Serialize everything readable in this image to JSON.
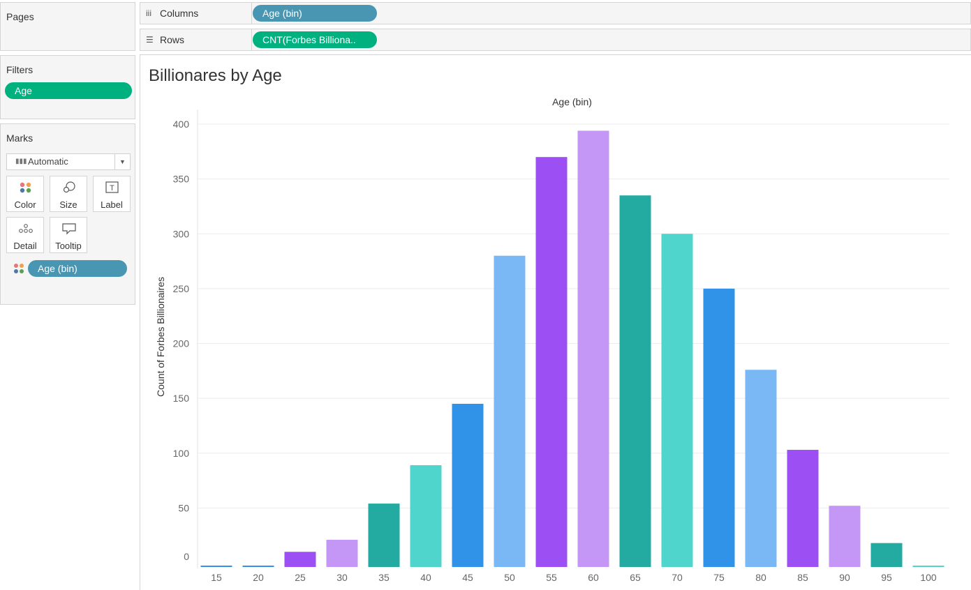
{
  "panels": {
    "pages_title": "Pages",
    "filters_title": "Filters",
    "filters_pill": "Age",
    "marks_title": "Marks",
    "mark_type": "Automatic",
    "buttons": [
      {
        "label": "Color",
        "icon": "color-icon"
      },
      {
        "label": "Size",
        "icon": "size-icon"
      },
      {
        "label": "Label",
        "icon": "label-icon"
      },
      {
        "label": "Detail",
        "icon": "detail-icon"
      },
      {
        "label": "Tooltip",
        "icon": "tooltip-icon"
      }
    ],
    "color_pill": "Age (bin)"
  },
  "shelves": {
    "columns_label": "Columns",
    "columns_pill": "Age (bin)",
    "rows_label": "Rows",
    "rows_pill": "CNT(Forbes Billiona.."
  },
  "chart_data": {
    "type": "bar",
    "title": "Billionares by Age",
    "xlabel": "Age (bin)",
    "ylabel": "Count of Forbes Billionaires",
    "categories": [
      "15",
      "20",
      "25",
      "30",
      "35",
      "40",
      "45",
      "50",
      "55",
      "60",
      "65",
      "70",
      "75",
      "80",
      "85",
      "90",
      "95",
      "100"
    ],
    "values": [
      1,
      0,
      10,
      21,
      54,
      89,
      145,
      280,
      370,
      394,
      335,
      300,
      250,
      176,
      103,
      52,
      18,
      1
    ],
    "colors": [
      "#3093e8",
      "#3093e8",
      "#9c4ff2",
      "#c496f5",
      "#23aba2",
      "#4fd5cc",
      "#3093e8",
      "#79b8f5",
      "#9c4ff2",
      "#c496f5",
      "#23aba2",
      "#4fd5cc",
      "#3093e8",
      "#79b8f5",
      "#9c4ff2",
      "#c496f5",
      "#23aba2",
      "#4fd5cc"
    ],
    "yticks": [
      0,
      50,
      100,
      150,
      200,
      250,
      300,
      350,
      400
    ],
    "ylim": [
      0,
      400
    ],
    "grid": true,
    "legend": "none"
  }
}
